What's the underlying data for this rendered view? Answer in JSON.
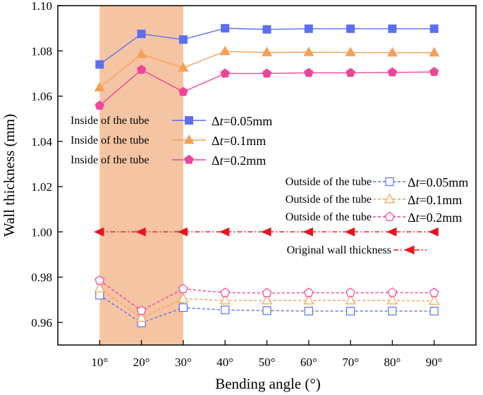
{
  "chart_data": {
    "type": "line",
    "xlabel": "Bending angle  (°)",
    "ylabel": "Wall thickness (mm)",
    "x": [
      10,
      20,
      30,
      40,
      50,
      60,
      70,
      80,
      90
    ],
    "x_tick_labels": [
      "10°",
      "20°",
      "30°",
      "40°",
      "50°",
      "60°",
      "70°",
      "80°",
      "90°"
    ],
    "xlim": [
      0,
      100
    ],
    "ylim": [
      0.95,
      1.1
    ],
    "y_ticks": [
      0.96,
      0.98,
      1.0,
      1.02,
      1.04,
      1.06,
      1.08,
      1.1
    ],
    "y_tick_labels": [
      "0.96",
      "0.98",
      "1.00",
      "1.02",
      "1.04",
      "1.06",
      "1.08",
      "1.10"
    ],
    "highlight_band": {
      "x_from": 10,
      "x_to": 30,
      "color": "#f5c4a3"
    },
    "grid": false,
    "series": [
      {
        "label": "Inside of the tube",
        "delta_t": "0.05mm",
        "color": "#5b6ff2",
        "marker": "square",
        "filled": true,
        "dash": "solid",
        "values": [
          1.074,
          1.0875,
          1.085,
          1.09,
          1.0895,
          1.0898,
          1.0898,
          1.0898,
          1.0898
        ]
      },
      {
        "label": "Inside of the tube",
        "delta_t": "0.1mm",
        "color": "#f6a055",
        "marker": "triangle",
        "filled": true,
        "dash": "solid",
        "values": [
          1.0638,
          1.0785,
          1.0725,
          1.0798,
          1.0793,
          1.0794,
          1.0793,
          1.0792,
          1.0792
        ]
      },
      {
        "label": "Inside of the tube",
        "delta_t": "0.2mm",
        "color": "#f0449a",
        "marker": "pentagon",
        "filled": true,
        "dash": "solid",
        "values": [
          1.0558,
          1.0717,
          1.0619,
          1.07,
          1.07,
          1.0703,
          1.0703,
          1.0705,
          1.0707
        ]
      },
      {
        "label": "Outside of the tube",
        "delta_t": "0.05mm",
        "color": "#5b6ff2",
        "marker": "square",
        "filled": false,
        "dash": "dashed",
        "values": [
          0.972,
          0.9598,
          0.9665,
          0.9655,
          0.9652,
          0.965,
          0.965,
          0.965,
          0.965
        ]
      },
      {
        "label": "Outside of the tube",
        "delta_t": "0.1mm",
        "color": "#f6a055",
        "marker": "triangle",
        "filled": false,
        "dash": "dashed",
        "values": [
          0.975,
          0.962,
          0.9705,
          0.9697,
          0.9697,
          0.9697,
          0.9697,
          0.9697,
          0.9695
        ]
      },
      {
        "label": "Outside of the tube",
        "delta_t": "0.2mm",
        "color": "#f0449a",
        "marker": "pentagon",
        "filled": false,
        "dash": "dashed",
        "values": [
          0.9785,
          0.9652,
          0.9748,
          0.9731,
          0.973,
          0.9731,
          0.9731,
          0.9732,
          0.9731
        ]
      },
      {
        "label": "Original wall thickness",
        "color": "#e8141c",
        "marker": "left-triangle",
        "filled": true,
        "dash": "dash-dot",
        "values": [
          1.0,
          1.0,
          1.0,
          1.0,
          1.0,
          1.0,
          1.0,
          1.0,
          1.0
        ]
      }
    ],
    "legend": {
      "inside": [
        {
          "label": "Inside of the tube",
          "delta_prefix": "Δ",
          "delta_var": "t",
          "delta_value": "=0.05mm"
        },
        {
          "label": "Inside of the tube",
          "delta_prefix": "Δ",
          "delta_var": "t",
          "delta_value": "=0.1mm"
        },
        {
          "label": "Inside of the tube",
          "delta_prefix": "Δ",
          "delta_var": "t",
          "delta_value": "=0.2mm"
        }
      ],
      "outside": [
        {
          "label": "Outside of the tube",
          "delta_prefix": "Δ",
          "delta_var": "t",
          "delta_value": "=0.05mm"
        },
        {
          "label": "Outside of the tube",
          "delta_prefix": "Δ",
          "delta_var": "t",
          "delta_value": "=0.1mm"
        },
        {
          "label": "Outside of the tube",
          "delta_prefix": "Δ",
          "delta_var": "t",
          "delta_value": "=0.2mm"
        }
      ],
      "original": {
        "label": "Original wall thickness"
      }
    }
  }
}
